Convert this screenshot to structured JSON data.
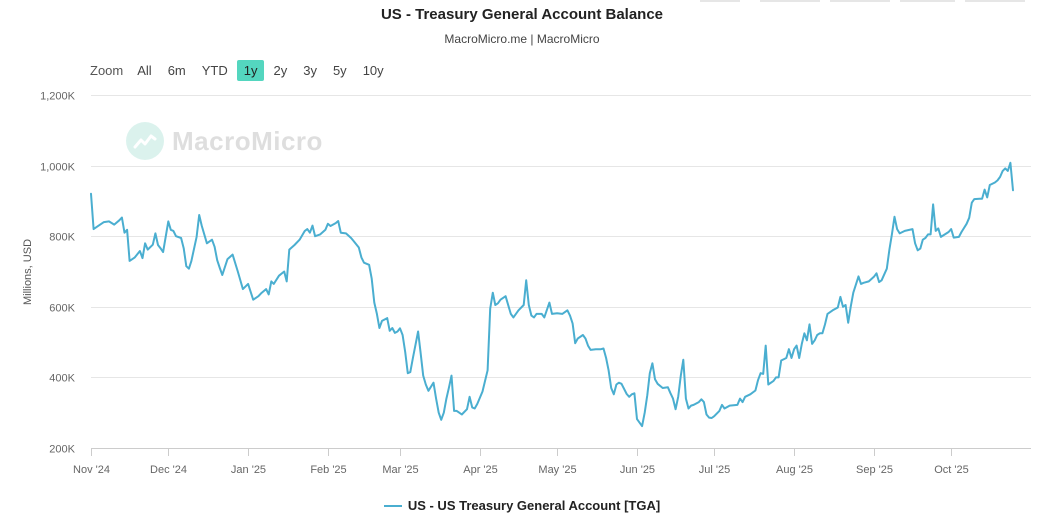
{
  "header": {
    "title": "US - Treasury General Account Balance",
    "subtitle": "MacroMicro.me | MacroMicro"
  },
  "range_selector": {
    "zoom_label": "Zoom",
    "options": [
      "All",
      "6m",
      "YTD",
      "1y",
      "2y",
      "3y",
      "5y",
      "10y"
    ],
    "active": "1y"
  },
  "watermark": {
    "text": "MacroMicro"
  },
  "colors": {
    "series": "#4aaed0",
    "grid": "#e6e6e6",
    "active_button": "#54d6bf"
  },
  "chart_data": {
    "type": "line",
    "title": "US - Treasury General Account Balance",
    "ylabel": "Millions, USD",
    "xlabel": "",
    "ylim": [
      200000,
      1200000
    ],
    "yticks": [
      200000,
      400000,
      600000,
      800000,
      1000000,
      1200000
    ],
    "ytick_labels": [
      "200K",
      "400K",
      "600K",
      "800K",
      "1,000K",
      "1,200K"
    ],
    "x_domain": [
      0,
      365
    ],
    "xticks": [
      {
        "label": "Nov '24",
        "day": 0
      },
      {
        "label": "Dec '24",
        "day": 30
      },
      {
        "label": "Jan '25",
        "day": 61
      },
      {
        "label": "Feb '25",
        "day": 92
      },
      {
        "label": "Mar '25",
        "day": 120
      },
      {
        "label": "Apr '25",
        "day": 151
      },
      {
        "label": "May '25",
        "day": 181
      },
      {
        "label": "Jun '25",
        "day": 212
      },
      {
        "label": "Jul '25",
        "day": 242
      },
      {
        "label": "Aug '25",
        "day": 273
      },
      {
        "label": "Sep '25",
        "day": 304
      },
      {
        "label": "Oct '25",
        "day": 334
      }
    ],
    "legend": "US - US Treasury General Account [TGA]",
    "legend_position": "bottom-center",
    "series": [
      {
        "name": "US - US Treasury General Account [TGA]",
        "points": [
          [
            0,
            920000
          ],
          [
            1,
            820000
          ],
          [
            3,
            830000
          ],
          [
            5,
            840000
          ],
          [
            7,
            842000
          ],
          [
            9,
            833000
          ],
          [
            11,
            845000
          ],
          [
            12,
            853000
          ],
          [
            13,
            810000
          ],
          [
            14,
            818000
          ],
          [
            15,
            730000
          ],
          [
            17,
            740000
          ],
          [
            19,
            758000
          ],
          [
            20,
            738000
          ],
          [
            21,
            780000
          ],
          [
            22,
            762000
          ],
          [
            24,
            776000
          ],
          [
            25,
            808000
          ],
          [
            26,
            775000
          ],
          [
            27,
            766000
          ],
          [
            28,
            755000
          ],
          [
            30,
            842000
          ],
          [
            31,
            818000
          ],
          [
            32,
            815000
          ],
          [
            33,
            800000
          ],
          [
            35,
            795000
          ],
          [
            36,
            766000
          ],
          [
            37,
            715000
          ],
          [
            38,
            708000
          ],
          [
            39,
            730000
          ],
          [
            41,
            798000
          ],
          [
            42,
            860000
          ],
          [
            43,
            830000
          ],
          [
            45,
            780000
          ],
          [
            47,
            790000
          ],
          [
            48,
            770000
          ],
          [
            49,
            732000
          ],
          [
            50,
            710000
          ],
          [
            51,
            690000
          ],
          [
            53,
            735000
          ],
          [
            55,
            748000
          ],
          [
            57,
            700000
          ],
          [
            59,
            650000
          ],
          [
            61,
            665000
          ],
          [
            63,
            620000
          ],
          [
            65,
            630000
          ],
          [
            66,
            638000
          ],
          [
            68,
            650000
          ],
          [
            69,
            635000
          ],
          [
            70,
            672000
          ],
          [
            71,
            665000
          ],
          [
            73,
            688000
          ],
          [
            75,
            700000
          ],
          [
            76,
            672000
          ],
          [
            77,
            762000
          ],
          [
            79,
            775000
          ],
          [
            81,
            790000
          ],
          [
            83,
            815000
          ],
          [
            84,
            820000
          ],
          [
            85,
            810000
          ],
          [
            86,
            830000
          ],
          [
            87,
            800000
          ],
          [
            89,
            805000
          ],
          [
            91,
            818000
          ],
          [
            92,
            835000
          ],
          [
            93,
            829000
          ],
          [
            95,
            837000
          ],
          [
            96,
            843000
          ],
          [
            97,
            810000
          ],
          [
            99,
            808000
          ],
          [
            101,
            795000
          ],
          [
            102,
            786000
          ],
          [
            104,
            768000
          ],
          [
            105,
            740000
          ],
          [
            106,
            725000
          ],
          [
            108,
            719000
          ],
          [
            109,
            680000
          ],
          [
            110,
            612000
          ],
          [
            111,
            580000
          ],
          [
            112,
            540000
          ],
          [
            113,
            560000
          ],
          [
            115,
            568000
          ],
          [
            116,
            532000
          ],
          [
            117,
            540000
          ],
          [
            118,
            526000
          ],
          [
            119,
            530000
          ],
          [
            120,
            539000
          ],
          [
            121,
            520000
          ],
          [
            122,
            472000
          ],
          [
            123,
            412000
          ],
          [
            124,
            415000
          ],
          [
            125,
            455000
          ],
          [
            127,
            530000
          ],
          [
            128,
            470000
          ],
          [
            129,
            405000
          ],
          [
            130,
            380000
          ],
          [
            131,
            362000
          ],
          [
            133,
            385000
          ],
          [
            134,
            340000
          ],
          [
            135,
            300000
          ],
          [
            136,
            280000
          ],
          [
            137,
            300000
          ],
          [
            138,
            340000
          ],
          [
            139,
            372000
          ],
          [
            140,
            405000
          ],
          [
            141,
            305000
          ],
          [
            142,
            305000
          ],
          [
            143,
            300000
          ],
          [
            144,
            295000
          ],
          [
            146,
            310000
          ],
          [
            147,
            345000
          ],
          [
            148,
            315000
          ],
          [
            149,
            312000
          ],
          [
            150,
            325000
          ],
          [
            152,
            360000
          ],
          [
            154,
            420000
          ],
          [
            155,
            595000
          ],
          [
            156,
            640000
          ],
          [
            157,
            605000
          ],
          [
            158,
            610000
          ],
          [
            159,
            620000
          ],
          [
            161,
            630000
          ],
          [
            163,
            580000
          ],
          [
            164,
            570000
          ],
          [
            166,
            590000
          ],
          [
            168,
            605000
          ],
          [
            169,
            675000
          ],
          [
            170,
            605000
          ],
          [
            171,
            575000
          ],
          [
            172,
            570000
          ],
          [
            173,
            580000
          ],
          [
            175,
            580000
          ],
          [
            176,
            570000
          ],
          [
            178,
            612000
          ],
          [
            179,
            580000
          ],
          [
            181,
            582000
          ],
          [
            183,
            580000
          ],
          [
            185,
            590000
          ],
          [
            186,
            575000
          ],
          [
            187,
            553000
          ],
          [
            188,
            497000
          ],
          [
            189,
            510000
          ],
          [
            191,
            520000
          ],
          [
            192,
            510000
          ],
          [
            193,
            490000
          ],
          [
            194,
            478000
          ],
          [
            196,
            480000
          ],
          [
            198,
            480000
          ],
          [
            199,
            482000
          ],
          [
            200,
            455000
          ],
          [
            201,
            420000
          ],
          [
            202,
            370000
          ],
          [
            203,
            352000
          ],
          [
            204,
            380000
          ],
          [
            205,
            385000
          ],
          [
            206,
            382000
          ],
          [
            208,
            353000
          ],
          [
            209,
            345000
          ],
          [
            210,
            352000
          ],
          [
            211,
            355000
          ],
          [
            212,
            282000
          ],
          [
            213,
            272000
          ],
          [
            214,
            262000
          ],
          [
            215,
            300000
          ],
          [
            216,
            350000
          ],
          [
            217,
            412000
          ],
          [
            218,
            440000
          ],
          [
            219,
            395000
          ],
          [
            220,
            382000
          ],
          [
            222,
            370000
          ],
          [
            224,
            372000
          ],
          [
            225,
            355000
          ],
          [
            226,
            340000
          ],
          [
            227,
            310000
          ],
          [
            228,
            345000
          ],
          [
            229,
            405000
          ],
          [
            230,
            450000
          ],
          [
            231,
            340000
          ],
          [
            232,
            312000
          ],
          [
            233,
            320000
          ],
          [
            234,
            322000
          ],
          [
            236,
            330000
          ],
          [
            237,
            338000
          ],
          [
            238,
            330000
          ],
          [
            239,
            295000
          ],
          [
            240,
            286000
          ],
          [
            241,
            285000
          ],
          [
            242,
            290000
          ],
          [
            244,
            305000
          ],
          [
            245,
            322000
          ],
          [
            246,
            312000
          ],
          [
            248,
            320000
          ],
          [
            251,
            322000
          ],
          [
            252,
            340000
          ],
          [
            253,
            330000
          ],
          [
            254,
            345000
          ],
          [
            256,
            352000
          ],
          [
            258,
            363000
          ],
          [
            259,
            392000
          ],
          [
            260,
            412000
          ],
          [
            261,
            410000
          ],
          [
            262,
            490000
          ],
          [
            263,
            380000
          ],
          [
            265,
            390000
          ],
          [
            266,
            400000
          ],
          [
            267,
            400000
          ],
          [
            268,
            448000
          ],
          [
            270,
            455000
          ],
          [
            271,
            480000
          ],
          [
            272,
            455000
          ],
          [
            273,
            480000
          ],
          [
            274,
            490000
          ],
          [
            275,
            455000
          ],
          [
            276,
            495000
          ],
          [
            277,
            525000
          ],
          [
            278,
            505000
          ],
          [
            279,
            550000
          ],
          [
            280,
            495000
          ],
          [
            281,
            505000
          ],
          [
            282,
            520000
          ],
          [
            283,
            525000
          ],
          [
            284,
            525000
          ],
          [
            285,
            550000
          ],
          [
            286,
            580000
          ],
          [
            288,
            590000
          ],
          [
            290,
            598000
          ],
          [
            291,
            628000
          ],
          [
            292,
            600000
          ],
          [
            293,
            605000
          ],
          [
            294,
            555000
          ],
          [
            295,
            600000
          ],
          [
            296,
            640000
          ],
          [
            298,
            686000
          ],
          [
            299,
            665000
          ],
          [
            300,
            668000
          ],
          [
            302,
            672000
          ],
          [
            304,
            685000
          ],
          [
            305,
            695000
          ],
          [
            306,
            670000
          ],
          [
            307,
            675000
          ],
          [
            309,
            708000
          ],
          [
            310,
            762000
          ],
          [
            311,
            805000
          ],
          [
            312,
            855000
          ],
          [
            313,
            820000
          ],
          [
            314,
            808000
          ],
          [
            316,
            815000
          ],
          [
            319,
            820000
          ],
          [
            320,
            780000
          ],
          [
            321,
            760000
          ],
          [
            322,
            765000
          ],
          [
            323,
            790000
          ],
          [
            324,
            795000
          ],
          [
            325,
            805000
          ],
          [
            326,
            805000
          ],
          [
            327,
            890000
          ],
          [
            328,
            815000
          ],
          [
            329,
            822000
          ],
          [
            330,
            798000
          ],
          [
            333,
            812000
          ],
          [
            334,
            820000
          ],
          [
            335,
            796000
          ],
          [
            337,
            798000
          ],
          [
            338,
            812000
          ],
          [
            340,
            835000
          ],
          [
            341,
            852000
          ],
          [
            342,
            895000
          ],
          [
            343,
            905000
          ],
          [
            345,
            906000
          ],
          [
            346,
            906000
          ],
          [
            347,
            932000
          ],
          [
            348,
            910000
          ],
          [
            349,
            945000
          ],
          [
            351,
            952000
          ],
          [
            352,
            958000
          ],
          [
            353,
            968000
          ],
          [
            354,
            985000
          ],
          [
            355,
            992000
          ],
          [
            356,
            985000
          ],
          [
            357,
            1008000
          ],
          [
            358,
            930000
          ]
        ]
      }
    ]
  }
}
